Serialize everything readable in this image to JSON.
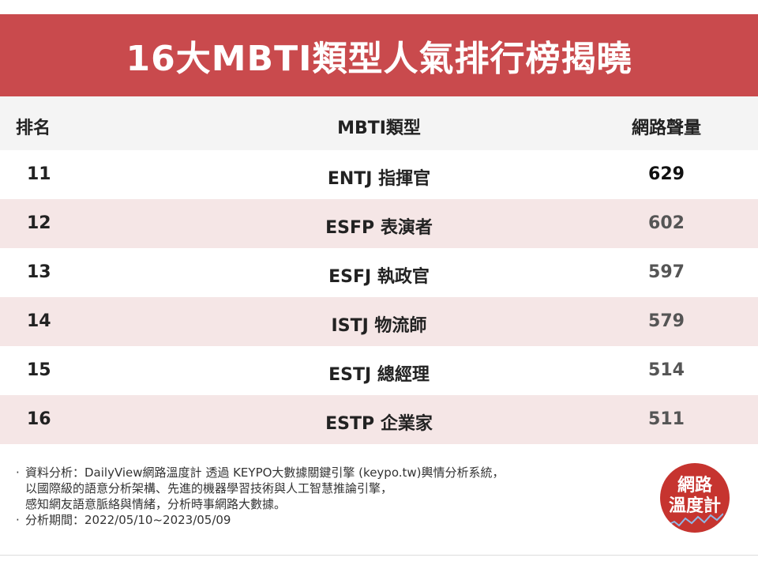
{
  "title": "16大MBTI類型人氣排行榜揭曉",
  "headers": {
    "rank": "排名",
    "type": "MBTI類型",
    "volume": "網路聲量"
  },
  "rows": [
    {
      "rank": "11",
      "type": "ENTJ 指揮官",
      "volume": "629"
    },
    {
      "rank": "12",
      "type": "ESFP 表演者",
      "volume": "602"
    },
    {
      "rank": "13",
      "type": "ESFJ 執政官",
      "volume": "597"
    },
    {
      "rank": "14",
      "type": "ISTJ 物流師",
      "volume": "579"
    },
    {
      "rank": "15",
      "type": "ESTJ 總經理",
      "volume": "514"
    },
    {
      "rank": "16",
      "type": "ESTP 企業家",
      "volume": "511"
    }
  ],
  "notes": {
    "bullet": "·",
    "line1": "資料分析：DailyView網路溫度計 透過 KEYPO大數據關鍵引擎 (keypo.tw)輿情分析系統，",
    "line2": "以國際級的語意分析架構、先進的機器學習技術與人工智慧推論引擎，",
    "line3": "感知網友語意脈絡與情緒，分析時事網路大數據。",
    "line4": "分析期間：2022/05/10~2023/05/09"
  },
  "logo": {
    "line1": "網路",
    "line2": "溫度計",
    "color": "#c6342f"
  },
  "colors": {
    "title_bg": "#c94a4d",
    "row_alt": "#f5e6e6"
  }
}
